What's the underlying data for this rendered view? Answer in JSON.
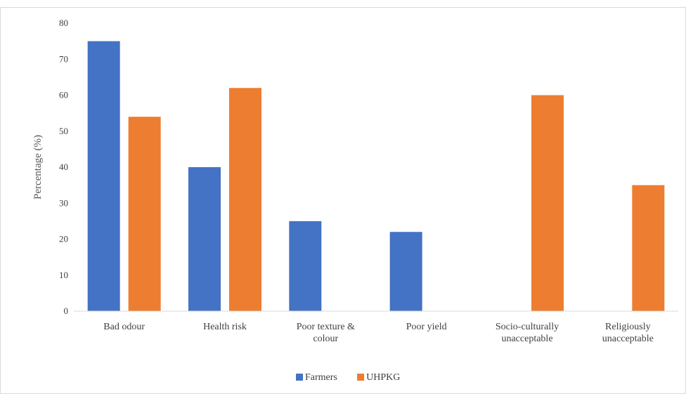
{
  "chart_data": {
    "type": "bar",
    "title": "",
    "xlabel": "",
    "ylabel": "Percentage (%)",
    "ylim": [
      0,
      80
    ],
    "yticks": [
      0,
      10,
      20,
      30,
      40,
      50,
      60,
      70,
      80
    ],
    "grid": false,
    "legend_position": "bottom",
    "categories": [
      [
        "Bad odour"
      ],
      [
        "Health risk"
      ],
      [
        "Poor texture &",
        "colour"
      ],
      [
        "Poor yield"
      ],
      [
        "Socio-culturally",
        "unacceptable"
      ],
      [
        "Religiously",
        "unacceptable"
      ]
    ],
    "series": [
      {
        "name": "Farmers",
        "color": "#4472C4",
        "values": [
          75,
          40,
          25,
          22,
          0,
          0
        ]
      },
      {
        "name": "UHPKG",
        "color": "#ED7D31",
        "values": [
          54,
          62,
          0,
          0,
          60,
          35
        ]
      }
    ]
  }
}
